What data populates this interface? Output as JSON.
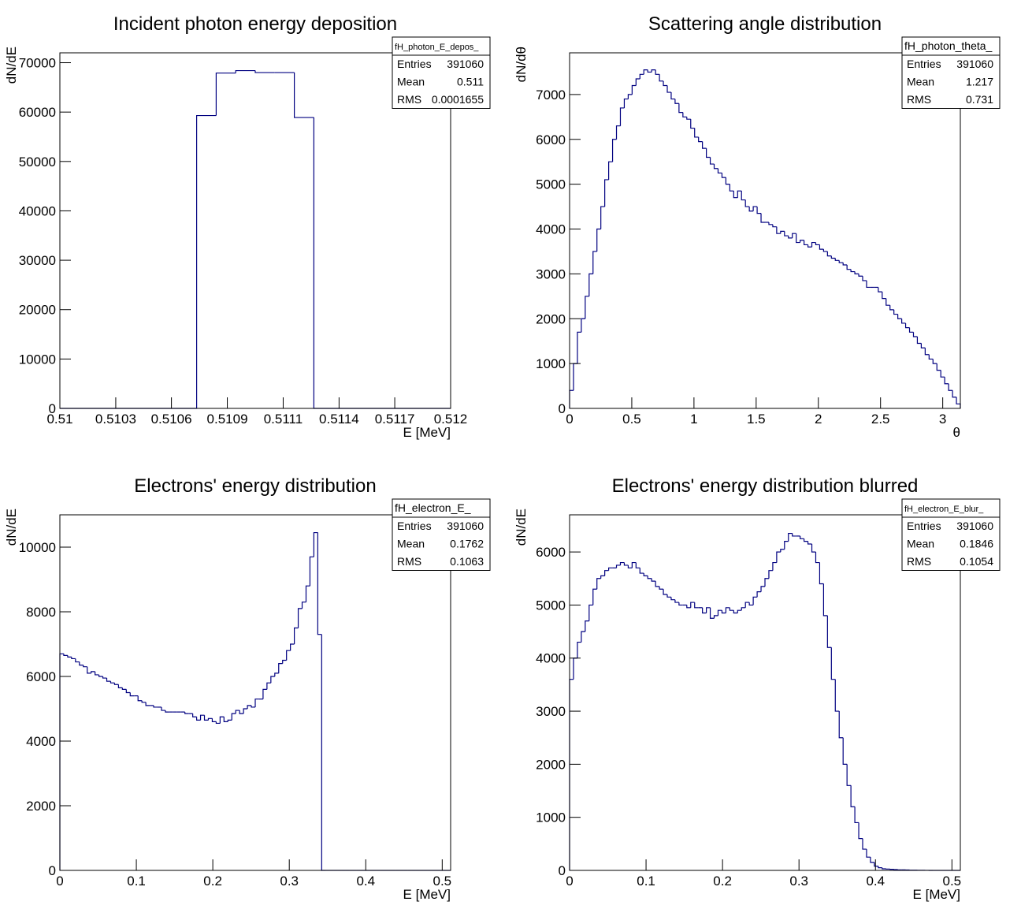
{
  "chart_data": [
    {
      "type": "histogram",
      "title": "Incident photon energy deposition",
      "xlabel": "E [MeV]",
      "ylabel": "dN/dE",
      "color": "#000080",
      "bins": [
        0.51,
        0.5101,
        0.5102,
        0.5103,
        0.5104,
        0.5105,
        0.5106,
        0.5107,
        0.5108,
        0.5109,
        0.511,
        0.5111,
        0.5112,
        0.5113,
        0.5114,
        0.5115,
        0.5116,
        0.5117,
        0.5118,
        0.5119,
        0.512
      ],
      "values": [
        0,
        0,
        0,
        0,
        0,
        0,
        0,
        59300,
        67900,
        68400,
        68000,
        68000,
        58900,
        0,
        0,
        0,
        0,
        0,
        0,
        0
      ],
      "xlim": [
        0.51,
        0.512
      ],
      "ylim": [
        0,
        72000
      ],
      "xticks": [
        0.51,
        {
          "value": 0.510286,
          "label": "0.5103"
        },
        {
          "value": 0.510571,
          "label": "0.5106"
        },
        {
          "value": 0.510857,
          "label": "0.5109"
        },
        {
          "value": 0.511143,
          "label": "0.5111"
        },
        {
          "value": 0.511429,
          "label": "0.5114"
        },
        {
          "value": 0.511714,
          "label": "0.5117"
        },
        0.512
      ],
      "yticks": [
        0,
        10000,
        20000,
        30000,
        40000,
        50000,
        60000,
        70000
      ],
      "stats": {
        "title": "fH_photon_E_depos_",
        "rows": [
          {
            "label": "Entries",
            "value": 391060
          },
          {
            "label": "Mean",
            "value": 0.511
          },
          {
            "label": "RMS",
            "value": 0.0001655
          }
        ]
      }
    },
    {
      "type": "histogram",
      "title": "Scattering angle distribution",
      "xlabel": "θ",
      "ylabel": "dN/dθ",
      "color": "#000080",
      "bins": [
        0,
        0.0314,
        0.0628,
        0.0942,
        0.1257,
        0.1571,
        0.1885,
        0.2199,
        0.2513,
        0.2827,
        0.3142,
        0.3456,
        0.377,
        0.4084,
        0.4398,
        0.4712,
        0.5027,
        0.5341,
        0.5655,
        0.5969,
        0.6283,
        0.6597,
        0.6912,
        0.7226,
        0.754,
        0.7854,
        0.8168,
        0.8482,
        0.8796,
        0.9111,
        0.9425,
        0.9739,
        1.0053,
        1.0367,
        1.0681,
        1.0996,
        1.131,
        1.1624,
        1.1938,
        1.2252,
        1.2566,
        1.2881,
        1.3195,
        1.3509,
        1.3823,
        1.4137,
        1.4451,
        1.4765,
        1.508,
        1.5394,
        1.5708,
        1.6022,
        1.6336,
        1.665,
        1.6965,
        1.7279,
        1.7593,
        1.7907,
        1.8221,
        1.8535,
        1.885,
        1.9164,
        1.9478,
        1.9792,
        2.0106,
        2.042,
        2.0735,
        2.1049,
        2.1363,
        2.1677,
        2.1991,
        2.2305,
        2.2619,
        2.2934,
        2.3248,
        2.3562,
        2.3876,
        2.419,
        2.4504,
        2.4819,
        2.5133,
        2.5447,
        2.5761,
        2.6075,
        2.6389,
        2.6704,
        2.7018,
        2.7332,
        2.7646,
        2.796,
        2.8274,
        2.8588,
        2.8903,
        2.9217,
        2.9531,
        2.9845,
        3.0159,
        3.0473,
        3.0788,
        3.1102,
        3.1416
      ],
      "values": [
        400,
        1000,
        1700,
        2000,
        2500,
        3000,
        3500,
        4000,
        4500,
        5100,
        5500,
        6000,
        6300,
        6700,
        6900,
        7000,
        7200,
        7350,
        7450,
        7550,
        7500,
        7550,
        7450,
        7300,
        7200,
        7050,
        6900,
        6800,
        6600,
        6500,
        6450,
        6250,
        6050,
        5950,
        5800,
        5600,
        5450,
        5350,
        5250,
        5150,
        5000,
        4850,
        4700,
        4850,
        4650,
        4500,
        4400,
        4500,
        4350,
        4150,
        4150,
        4100,
        4050,
        3900,
        3950,
        3850,
        3800,
        3900,
        3700,
        3750,
        3650,
        3600,
        3700,
        3650,
        3550,
        3500,
        3400,
        3350,
        3300,
        3250,
        3200,
        3100,
        3050,
        3000,
        2950,
        2850,
        2700,
        2700,
        2700,
        2600,
        2450,
        2300,
        2200,
        2100,
        2000,
        1900,
        1800,
        1700,
        1600,
        1450,
        1350,
        1200,
        1100,
        1000,
        850,
        700,
        550,
        400,
        250,
        100
      ],
      "xlim": [
        0,
        3.1416
      ],
      "ylim": [
        0,
        7930
      ],
      "xticks": [
        0,
        0.5,
        1,
        1.5,
        2,
        2.5,
        3
      ],
      "yticks": [
        0,
        1000,
        2000,
        3000,
        4000,
        5000,
        6000,
        7000
      ],
      "stats": {
        "title": "fH_photon_theta_",
        "rows": [
          {
            "label": "Entries",
            "value": 391060
          },
          {
            "label": "Mean",
            "value": 1.217
          },
          {
            "label": "RMS",
            "value": 0.731
          }
        ]
      }
    },
    {
      "type": "histogram",
      "title": "Electrons' energy distribution",
      "xlabel": "E [MeV]",
      "ylabel": "dN/dE",
      "color": "#000080",
      "bins": [
        0,
        0.00511,
        0.01022,
        0.01533,
        0.02044,
        0.02555,
        0.03066,
        0.03577,
        0.04088,
        0.04599,
        0.0511,
        0.05621,
        0.06132,
        0.06643,
        0.07154,
        0.07665,
        0.08176,
        0.08687,
        0.09198,
        0.09709,
        0.1022,
        0.10731,
        0.11242,
        0.11753,
        0.12264,
        0.12775,
        0.13286,
        0.13797,
        0.14308,
        0.14819,
        0.1533,
        0.15841,
        0.16352,
        0.16863,
        0.17374,
        0.17885,
        0.18396,
        0.18907,
        0.19418,
        0.19929,
        0.2044,
        0.20951,
        0.21462,
        0.21973,
        0.22484,
        0.22995,
        0.23506,
        0.24017,
        0.24528,
        0.25039,
        0.2555,
        0.26061,
        0.26572,
        0.27083,
        0.27594,
        0.28105,
        0.28616,
        0.29127,
        0.29638,
        0.30149,
        0.3066,
        0.31171,
        0.31682,
        0.32193,
        0.32704,
        0.33215,
        0.33726,
        0.34237,
        0.34748,
        0.35259,
        0.3577,
        0.36281,
        0.36792,
        0.37303,
        0.37814,
        0.38325,
        0.38836,
        0.39347,
        0.39858,
        0.40369,
        0.4088,
        0.41391,
        0.41902,
        0.42413,
        0.42924,
        0.43435,
        0.43946,
        0.44457,
        0.44968,
        0.45479,
        0.4599,
        0.46501,
        0.47012,
        0.47523,
        0.48034,
        0.48545,
        0.49056,
        0.49567,
        0.50078,
        0.50589,
        0.511
      ],
      "values": [
        6700,
        6650,
        6600,
        6550,
        6450,
        6350,
        6300,
        6100,
        6150,
        6050,
        6000,
        5950,
        5850,
        5800,
        5750,
        5650,
        5600,
        5500,
        5400,
        5400,
        5250,
        5200,
        5100,
        5100,
        5050,
        5050,
        4950,
        4900,
        4900,
        4900,
        4900,
        4900,
        4850,
        4850,
        4750,
        4650,
        4800,
        4650,
        4700,
        4600,
        4550,
        4750,
        4600,
        4650,
        4850,
        4950,
        4850,
        5000,
        5100,
        5050,
        5300,
        5300,
        5600,
        5800,
        6000,
        6100,
        6400,
        6500,
        6800,
        7000,
        7500,
        8100,
        8300,
        8800,
        9700,
        10450,
        7300,
        0,
        0,
        0,
        0,
        0,
        0,
        0,
        0,
        0,
        0,
        0,
        0,
        0,
        0,
        0,
        0,
        0,
        0,
        0,
        0,
        0,
        0,
        0,
        0,
        0,
        0,
        0,
        0,
        0,
        0,
        0,
        0,
        0
      ],
      "xlim": [
        0,
        0.511
      ],
      "ylim": [
        0,
        11000
      ],
      "xticks": [
        0,
        0.1,
        0.2,
        0.3,
        0.4,
        0.5
      ],
      "yticks": [
        0,
        2000,
        4000,
        6000,
        8000,
        10000
      ],
      "stats": {
        "title": "fH_electron_E_",
        "rows": [
          {
            "label": "Entries",
            "value": 391060
          },
          {
            "label": "Mean",
            "value": 0.1762
          },
          {
            "label": "RMS",
            "value": 0.1063
          }
        ]
      }
    },
    {
      "type": "histogram",
      "title": "Electrons' energy distribution blurred",
      "xlabel": "E [MeV]",
      "ylabel": "dN/dE",
      "color": "#000080",
      "bins": [
        0,
        0.00511,
        0.01022,
        0.01533,
        0.02044,
        0.02555,
        0.03066,
        0.03577,
        0.04088,
        0.04599,
        0.0511,
        0.05621,
        0.06132,
        0.06643,
        0.07154,
        0.07665,
        0.08176,
        0.08687,
        0.09198,
        0.09709,
        0.1022,
        0.10731,
        0.11242,
        0.11753,
        0.12264,
        0.12775,
        0.13286,
        0.13797,
        0.14308,
        0.14819,
        0.1533,
        0.15841,
        0.16352,
        0.16863,
        0.17374,
        0.17885,
        0.18396,
        0.18907,
        0.19418,
        0.19929,
        0.2044,
        0.20951,
        0.21462,
        0.21973,
        0.22484,
        0.22995,
        0.23506,
        0.24017,
        0.24528,
        0.25039,
        0.2555,
        0.26061,
        0.26572,
        0.27083,
        0.27594,
        0.28105,
        0.28616,
        0.29127,
        0.29638,
        0.30149,
        0.3066,
        0.31171,
        0.31682,
        0.32193,
        0.32704,
        0.33215,
        0.33726,
        0.34237,
        0.34748,
        0.35259,
        0.3577,
        0.36281,
        0.36792,
        0.37303,
        0.37814,
        0.38325,
        0.38836,
        0.39347,
        0.39858,
        0.40369,
        0.4088,
        0.41391,
        0.41902,
        0.42413,
        0.42924,
        0.43435,
        0.43946,
        0.44457,
        0.44968,
        0.45479,
        0.4599,
        0.46501,
        0.47012,
        0.47523,
        0.48034,
        0.48545,
        0.49056,
        0.49567,
        0.50078,
        0.50589,
        0.511
      ],
      "values": [
        3600,
        4000,
        4300,
        4500,
        4700,
        5000,
        5300,
        5500,
        5550,
        5650,
        5700,
        5700,
        5750,
        5800,
        5750,
        5700,
        5800,
        5700,
        5600,
        5550,
        5500,
        5450,
        5350,
        5300,
        5200,
        5150,
        5100,
        5050,
        5000,
        5000,
        4950,
        5050,
        4950,
        4950,
        4850,
        4950,
        4750,
        4800,
        4900,
        4850,
        4950,
        4900,
        4850,
        4900,
        4950,
        5050,
        5000,
        5150,
        5250,
        5350,
        5500,
        5650,
        5800,
        6000,
        6050,
        6200,
        6350,
        6300,
        6300,
        6250,
        6200,
        6150,
        6000,
        5800,
        5400,
        4800,
        4200,
        3600,
        3000,
        2500,
        2000,
        1600,
        1200,
        900,
        600,
        400,
        250,
        150,
        80,
        50,
        30,
        25,
        20,
        15,
        10,
        10,
        8,
        5,
        4,
        3,
        2,
        1,
        0,
        0,
        0,
        0,
        0,
        0,
        0,
        0
      ],
      "xlim": [
        0,
        0.511
      ],
      "ylim": [
        0,
        6700
      ],
      "xticks": [
        0,
        0.1,
        0.2,
        0.3,
        0.4,
        0.5
      ],
      "yticks": [
        0,
        1000,
        2000,
        3000,
        4000,
        5000,
        6000
      ],
      "stats": {
        "title": "fH_electron_E_blur_",
        "rows": [
          {
            "label": "Entries",
            "value": 391060
          },
          {
            "label": "Mean",
            "value": 0.1846
          },
          {
            "label": "RMS",
            "value": 0.1054
          }
        ]
      }
    }
  ]
}
